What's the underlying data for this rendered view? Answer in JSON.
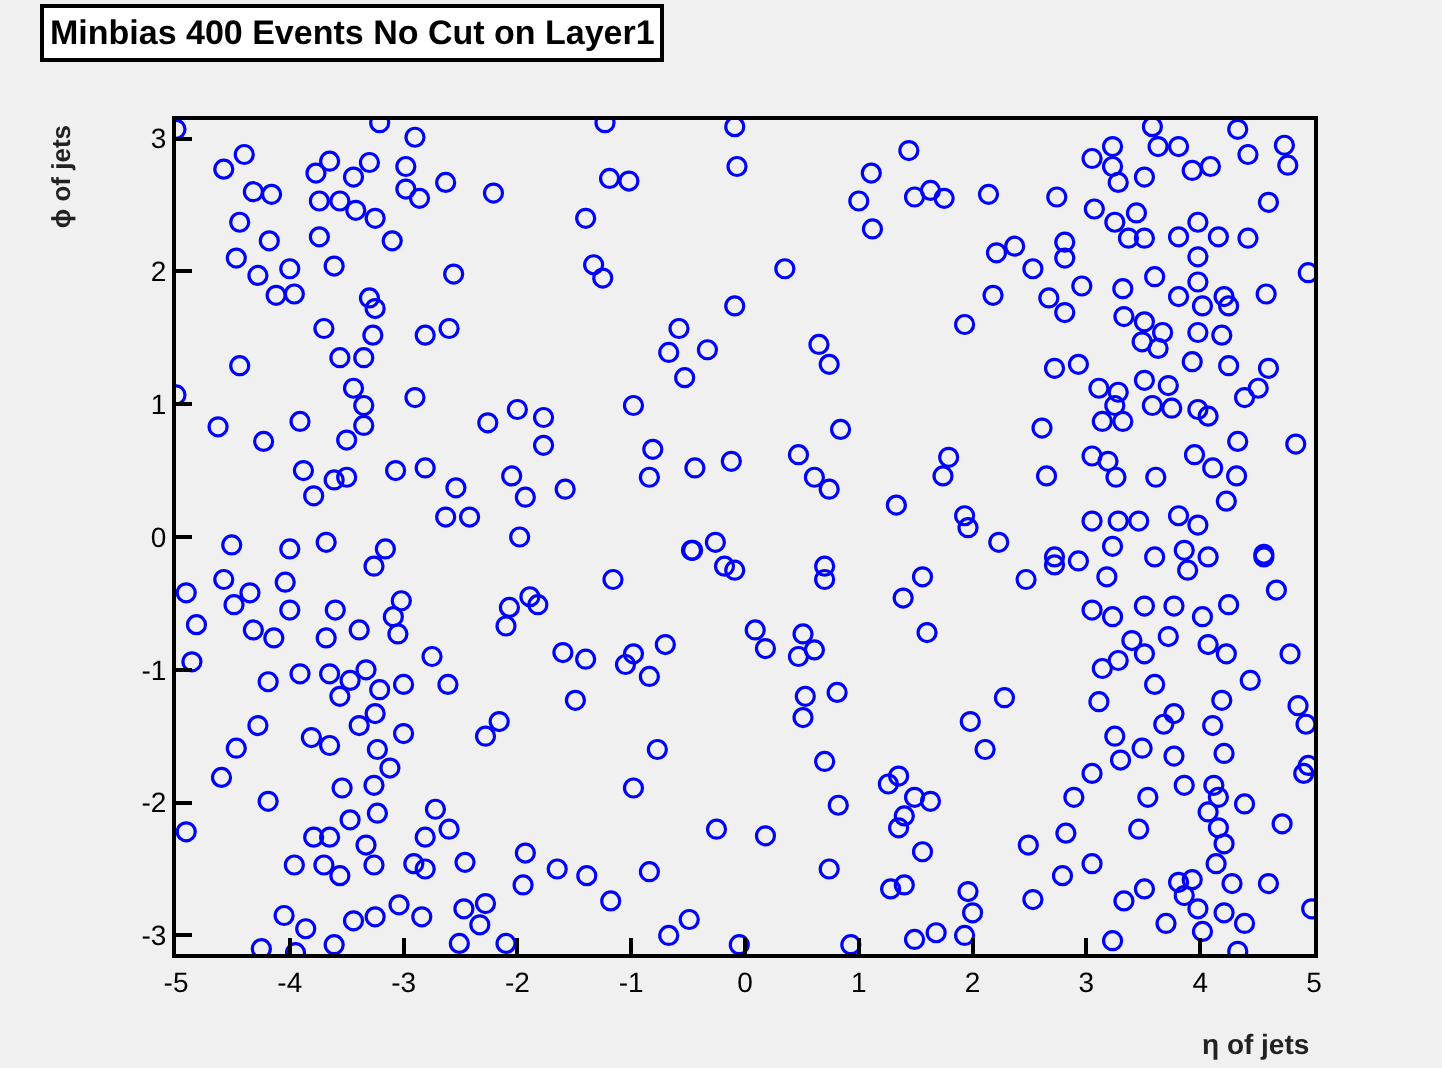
{
  "chart_data": {
    "type": "scatter",
    "title": "Minbias 400 Events No Cut on Layer1",
    "xlabel": "η of jets",
    "ylabel": "ϕ of jets",
    "color": "#0000ff",
    "marker": "circle",
    "grid": false,
    "xlim": [
      -5,
      5
    ],
    "ylim": [
      -3.14,
      3.14
    ],
    "xticks": [
      -5,
      -4,
      -3,
      -2,
      -1,
      0,
      1,
      2,
      3,
      4,
      5
    ],
    "yticks": [
      -3,
      -2,
      -1,
      0,
      1,
      2,
      3
    ],
    "x": [
      -5.0,
      -4.58,
      -4.4,
      -4.32,
      -4.16,
      -4.44,
      -4.18,
      -4.47,
      -4.28,
      -4.0,
      -4.12,
      -3.96,
      -3.7,
      -4.44,
      -5.0,
      -4.63,
      -4.23,
      -3.91,
      -3.88,
      -3.79,
      -3.61,
      -3.5,
      -3.5,
      -3.77,
      -3.65,
      -3.44,
      -3.74,
      -3.56,
      -3.42,
      -3.74,
      -3.61,
      -3.3,
      -3.21,
      -2.9,
      -2.98,
      -2.98,
      -2.86,
      -3.25,
      -3.1,
      -2.63,
      -2.21,
      -2.56,
      -3.3,
      -3.25,
      -3.27,
      -2.81,
      -2.6,
      -3.56,
      -3.35,
      -3.44,
      -3.35,
      -3.35,
      -2.9,
      -2.26,
      -2.0,
      -1.77,
      -1.77,
      -2.05,
      -1.93,
      -1.58,
      -2.54,
      -3.07,
      -2.81,
      -2.63,
      -2.42,
      -1.98,
      -1.4,
      -1.33,
      -1.25,
      -1.23,
      -1.19,
      -1.02,
      -0.98,
      -0.81,
      -0.84,
      -0.44,
      -0.12,
      -0.58,
      -0.67,
      -0.53,
      -0.33,
      -0.09,
      -0.07,
      -0.09,
      -0.46,
      -0.26,
      -4.51,
      -4.0,
      -3.68,
      -3.16,
      -3.26,
      -4.58,
      -4.91,
      -4.35,
      -4.04,
      -4.49,
      -4.0,
      -3.6,
      -3.02,
      -3.09,
      -4.82,
      -4.32,
      -4.14,
      -3.68,
      -3.39,
      -3.05,
      -4.86,
      -4.19,
      -3.91,
      -3.65,
      -3.47,
      -3.33,
      -3.21,
      -3.0,
      -3.56,
      -2.75,
      -2.61,
      -4.28,
      -4.47,
      -3.81,
      -3.65,
      -3.39,
      -3.25,
      -3.23,
      -3.12,
      -3.0,
      -4.6,
      -4.19,
      -3.54,
      -3.26,
      -3.23,
      -3.47,
      -4.91,
      -3.79,
      -3.65,
      -3.33,
      -3.96,
      -3.7,
      -3.26,
      -3.56,
      -2.91,
      -2.81,
      -2.72,
      -2.6,
      -2.81,
      -2.46,
      -1.93,
      -1.95,
      -1.65,
      -1.39,
      -1.18,
      -0.84,
      -0.98,
      -0.77,
      -1.49,
      -1.6,
      -1.4,
      -1.05,
      -0.84,
      -0.98,
      -0.7,
      -1.16,
      -2.07,
      -1.89,
      -1.82,
      -2.1,
      -2.28,
      -2.16,
      -0.25,
      0.18,
      0.09,
      0.18,
      -0.18,
      -0.09,
      -0.47,
      -0.49,
      -0.67,
      -3.04,
      -3.25,
      -3.44,
      -2.84,
      -2.47,
      -2.28,
      -2.33,
      -2.51,
      -2.1,
      -4.05,
      -3.86,
      -4.25,
      -3.95,
      -3.61,
      -0.05,
      1.44,
      1.11,
      1.0,
      1.12,
      1.49,
      1.63,
      1.75,
      2.14,
      2.74,
      0.35,
      2.18,
      1.93,
      0.65,
      0.74,
      0.84,
      0.47,
      0.61,
      0.74,
      1.33,
      1.79,
      1.74,
      1.93,
      1.96,
      2.23,
      2.21,
      2.37,
      2.53,
      2.81,
      2.81,
      2.67,
      2.81,
      2.96,
      2.72,
      2.93,
      2.61,
      2.65,
      3.05,
      3.23,
      3.23,
      3.28,
      3.51,
      3.58,
      3.63,
      3.81,
      3.93,
      4.09,
      4.33,
      4.42,
      4.74,
      4.77,
      4.6,
      3.07,
      3.25,
      3.44,
      3.37,
      3.51,
      3.81,
      3.98,
      3.98,
      4.16,
      4.42,
      3.32,
      3.6,
      3.81,
      3.98,
      4.02,
      4.21,
      4.25,
      4.58,
      4.95,
      3.33,
      3.51,
      3.49,
      3.67,
      3.63,
      3.98,
      4.19,
      3.93,
      4.25,
      4.6,
      3.11,
      3.28,
      3.51,
      3.72,
      3.25,
      3.58,
      3.75,
      3.14,
      3.32,
      3.98,
      4.07,
      4.39,
      4.51,
      4.84,
      4.33,
      3.95,
      4.11,
      4.32,
      3.05,
      3.19,
      3.26,
      3.61,
      4.23,
      3.05,
      3.28,
      3.46,
      3.81,
      3.98,
      2.72,
      4.56,
      0.7,
      0.7,
      1.56,
      1.39,
      1.6,
      0.51,
      0.61,
      0.47,
      0.53,
      0.81,
      0.51,
      0.7,
      0.82,
      0.74,
      1.26,
      1.35,
      1.49,
      1.63,
      1.4,
      1.35,
      1.56,
      1.28,
      1.4,
      1.49,
      1.68,
      1.96,
      2.0,
      1.93,
      0.93,
      1.98,
      2.11,
      2.28,
      2.47,
      2.72,
      2.93,
      3.18,
      3.23,
      3.05,
      3.23,
      3.51,
      3.77,
      4.02,
      4.25,
      3.6,
      3.86,
      4.07,
      3.89,
      4.56,
      4.67,
      3.4,
      3.28,
      3.14,
      3.51,
      3.72,
      4.07,
      4.23,
      4.79,
      3.6,
      3.11,
      4.19,
      4.44,
      3.77,
      3.68,
      4.11,
      3.25,
      3.49,
      3.3,
      3.77,
      4.21,
      4.86,
      4.93,
      4.91,
      4.95,
      3.05,
      2.89,
      3.54,
      3.86,
      4.12,
      4.16,
      4.39,
      4.07,
      4.16,
      4.72,
      3.46,
      4.21,
      2.82,
      2.49,
      3.05,
      2.79,
      2.53,
      4.14,
      3.33,
      3.51,
      3.81,
      3.93,
      3.86,
      4.28,
      4.6,
      3.7,
      3.98,
      4.21,
      4.39,
      4.02,
      4.98,
      3.23,
      4.33
    ],
    "values": [
      3.07,
      2.77,
      2.88,
      2.6,
      2.58,
      2.37,
      2.23,
      2.1,
      1.97,
      2.02,
      1.82,
      1.83,
      1.57,
      1.29,
      1.07,
      0.83,
      0.72,
      0.87,
      0.5,
      0.31,
      0.43,
      0.45,
      0.73,
      2.74,
      2.83,
      2.71,
      2.53,
      2.53,
      2.46,
      2.26,
      2.04,
      2.82,
      3.12,
      3.01,
      2.79,
      2.62,
      2.55,
      2.4,
      2.23,
      2.67,
      2.59,
      1.98,
      1.8,
      1.72,
      1.52,
      1.52,
      1.57,
      1.35,
      1.35,
      1.12,
      0.99,
      0.84,
      1.05,
      0.86,
      0.96,
      0.9,
      0.69,
      0.46,
      0.3,
      0.36,
      0.37,
      0.5,
      0.52,
      0.15,
      0.15,
      0.0,
      2.4,
      2.05,
      1.95,
      3.12,
      2.7,
      2.68,
      0.99,
      0.66,
      0.45,
      0.52,
      0.57,
      1.57,
      1.39,
      1.2,
      1.41,
      3.09,
      2.79,
      1.74,
      -0.1,
      -0.04,
      -0.06,
      -0.09,
      -0.04,
      -0.09,
      -0.22,
      -0.32,
      -0.42,
      -0.42,
      -0.34,
      -0.51,
      -0.55,
      -0.55,
      -0.48,
      -0.6,
      -0.66,
      -0.7,
      -0.76,
      -0.76,
      -0.7,
      -0.73,
      -0.94,
      -1.09,
      -1.03,
      -1.03,
      -1.08,
      -1.0,
      -1.15,
      -1.11,
      -1.2,
      -0.9,
      -1.11,
      -1.42,
      -1.59,
      -1.51,
      -1.57,
      -1.42,
      -1.33,
      -1.6,
      -1.74,
      -1.48,
      -1.81,
      -1.99,
      -1.89,
      -1.87,
      -2.08,
      -2.13,
      -2.22,
      -2.26,
      -2.26,
      -2.32,
      -2.47,
      -2.47,
      -2.47,
      -2.55,
      -2.46,
      -2.26,
      -2.05,
      -2.2,
      -2.5,
      -2.45,
      -2.38,
      -2.62,
      -2.5,
      -2.55,
      -2.74,
      -2.52,
      -1.89,
      -1.6,
      -1.23,
      -0.87,
      -0.92,
      -0.96,
      -1.05,
      -0.88,
      -0.81,
      -0.32,
      -0.53,
      -0.45,
      -0.51,
      -0.67,
      -1.5,
      -1.39,
      -2.2,
      -2.25,
      -0.7,
      -0.84,
      -0.22,
      -0.25,
      -0.1,
      -2.88,
      -3.0,
      -2.77,
      -2.86,
      -2.89,
      -2.86,
      -2.8,
      -2.76,
      -2.92,
      -3.06,
      -3.06,
      -2.85,
      -2.95,
      -3.1,
      -3.13,
      -3.07,
      -3.07,
      2.91,
      2.74,
      2.53,
      2.32,
      2.56,
      2.61,
      2.55,
      2.58,
      2.56,
      2.02,
      1.82,
      1.6,
      1.45,
      1.3,
      0.81,
      0.62,
      0.45,
      0.36,
      0.24,
      0.6,
      0.46,
      0.16,
      0.07,
      -0.04,
      2.14,
      2.19,
      2.02,
      2.22,
      2.1,
      1.8,
      1.69,
      1.89,
      1.27,
      1.3,
      0.82,
      0.46,
      2.85,
      2.94,
      2.79,
      2.67,
      2.71,
      3.09,
      2.94,
      2.94,
      2.76,
      2.79,
      3.07,
      2.88,
      2.95,
      2.8,
      2.52,
      2.47,
      2.37,
      2.44,
      2.25,
      2.25,
      2.26,
      2.37,
      2.11,
      2.26,
      2.25,
      1.87,
      1.96,
      1.81,
      1.92,
      1.74,
      1.81,
      1.74,
      1.83,
      1.99,
      1.66,
      1.62,
      1.47,
      1.54,
      1.42,
      1.54,
      1.52,
      1.32,
      1.29,
      1.27,
      1.12,
      1.09,
      1.18,
      1.14,
      0.99,
      0.99,
      0.97,
      0.87,
      0.87,
      0.96,
      0.91,
      1.05,
      1.12,
      0.7,
      0.72,
      0.62,
      0.52,
      0.46,
      0.61,
      0.57,
      0.45,
      0.45,
      0.27,
      0.12,
      0.12,
      0.12,
      0.16,
      0.09,
      -0.15,
      -0.13,
      -0.22,
      -0.32,
      -0.3,
      -0.46,
      -0.72,
      -0.73,
      -0.85,
      -0.9,
      -1.2,
      -1.17,
      -1.36,
      -1.69,
      -2.02,
      -2.5,
      -1.86,
      -1.8,
      -1.96,
      -1.99,
      -2.1,
      -2.19,
      -2.37,
      -2.65,
      -2.62,
      -3.03,
      -2.98,
      -2.67,
      -2.83,
      -3.0,
      -3.07,
      -1.39,
      -1.6,
      -1.21,
      -0.32,
      -0.21,
      -0.18,
      -0.3,
      -0.07,
      -0.55,
      -0.6,
      -0.52,
      -0.52,
      -0.6,
      -0.51,
      -0.15,
      -0.1,
      -0.15,
      -0.25,
      -0.15,
      -0.4,
      -0.78,
      -0.93,
      -0.99,
      -0.88,
      -0.75,
      -0.81,
      -0.88,
      -0.88,
      -1.11,
      -1.24,
      -1.23,
      -1.08,
      -1.33,
      -1.41,
      -1.42,
      -1.5,
      -1.59,
      -1.68,
      -1.65,
      -1.63,
      -1.27,
      -1.41,
      -1.78,
      -1.72,
      -1.78,
      -1.96,
      -1.96,
      -1.87,
      -1.87,
      -1.96,
      -2.01,
      -2.07,
      -2.19,
      -2.16,
      -2.2,
      -2.31,
      -2.23,
      -2.32,
      -2.46,
      -2.55,
      -2.73,
      -2.46,
      -2.74,
      -2.65,
      -2.6,
      -2.58,
      -2.7,
      -2.61,
      -2.61,
      -2.91,
      -2.8,
      -2.83,
      -2.91,
      -2.97,
      -2.8,
      -3.04,
      -3.12
    ]
  }
}
